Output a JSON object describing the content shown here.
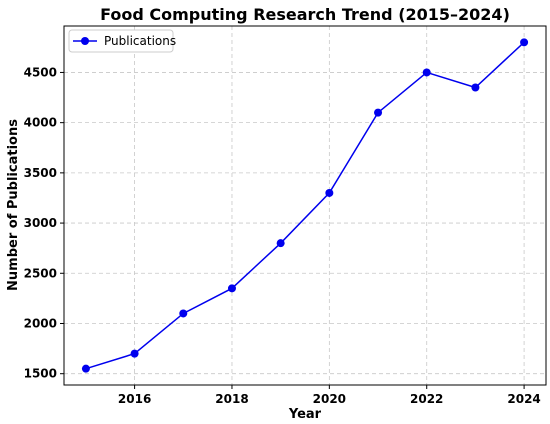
{
  "chart_data": {
    "type": "line",
    "title": "Food Computing Research Trend (2015–2024)",
    "xlabel": "Year",
    "ylabel": "Number of Publications",
    "x": [
      2015,
      2016,
      2017,
      2018,
      2019,
      2020,
      2021,
      2022,
      2023,
      2024
    ],
    "series": [
      {
        "name": "Publications",
        "color": "#0000ee",
        "values": [
          1550,
          1700,
          2100,
          2350,
          2800,
          3300,
          4100,
          4500,
          4350,
          4800
        ]
      }
    ],
    "xlim": [
      2014.55,
      2024.45
    ],
    "ylim": [
      1387.5,
      4962.5
    ],
    "x_ticks": [
      "2016",
      "2018",
      "2020",
      "2022",
      "2024"
    ],
    "y_ticks": [
      "1500",
      "2000",
      "2500",
      "3000",
      "3500",
      "4000",
      "4500"
    ],
    "grid": true,
    "legend_position": "upper-left"
  }
}
